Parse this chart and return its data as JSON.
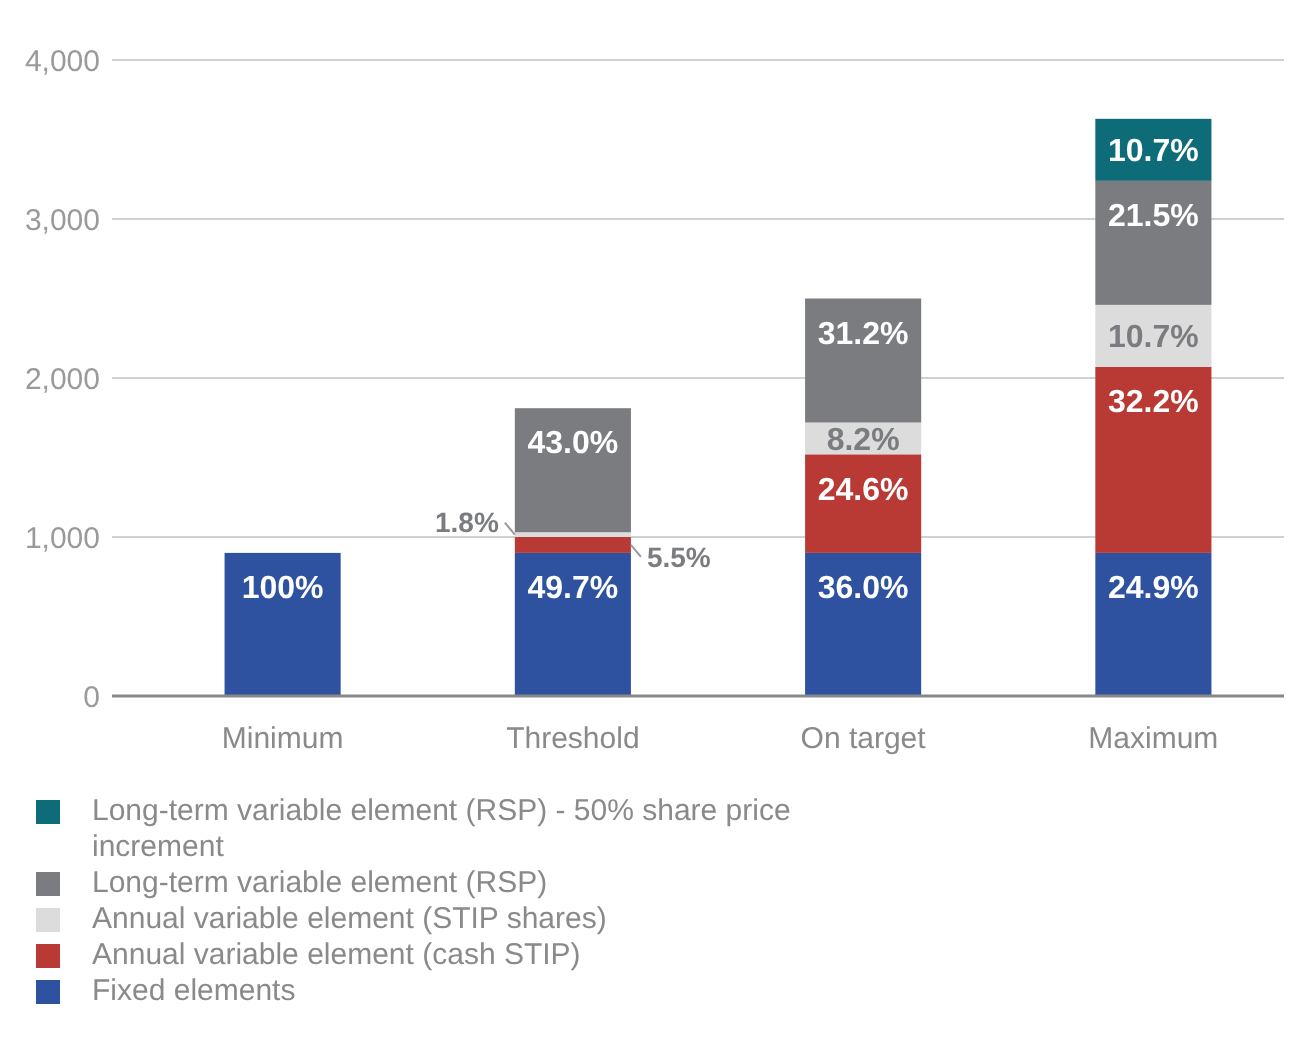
{
  "chart_data": {
    "type": "bar",
    "stacked": true,
    "categories": [
      "Minimum",
      "Threshold",
      "On target",
      "Maximum"
    ],
    "series": [
      {
        "name": "Fixed elements",
        "color": "#2f52a0",
        "values": [
          900,
          900,
          900,
          900
        ]
      },
      {
        "name": "Annual variable element (cash STIP)",
        "color": "#b93a35",
        "values": [
          null,
          100,
          620,
          1170
        ]
      },
      {
        "name": "Annual variable element (STIP shares)",
        "color": "#dcdcdc",
        "values": [
          null,
          30,
          200,
          390
        ]
      },
      {
        "name": "Long-term variable element (RSP)",
        "color": "#7a7c80",
        "values": [
          null,
          780,
          780,
          780
        ]
      },
      {
        "name": "Long-term variable element (RSP) - 50% share price increment",
        "color": "#0e6b78",
        "values": [
          null,
          null,
          null,
          390
        ]
      }
    ],
    "annotations": [
      {
        "text": "100%",
        "x": "Minimum",
        "y": 900
      },
      {
        "text": "49.7%",
        "x": "Threshold",
        "y": 900
      },
      {
        "text": "5.5%",
        "x": "Threshold",
        "y": 1000
      },
      {
        "text": "1.8%",
        "x": "Threshold",
        "y": 1030
      },
      {
        "text": "43.0%",
        "x": "Threshold",
        "y": 1810
      },
      {
        "text": "36.0%",
        "x": "On target",
        "y": 900
      },
      {
        "text": "24.6%",
        "x": "On target",
        "y": 1520
      },
      {
        "text": "8.2%",
        "x": "On target",
        "y": 1720
      },
      {
        "text": "31.2%",
        "x": "On target",
        "y": 2500
      },
      {
        "text": "24.9%",
        "x": "Maximum",
        "y": 900
      },
      {
        "text": "32.2%",
        "x": "Maximum",
        "y": 2070
      },
      {
        "text": "10.7%",
        "x": "Maximum",
        "y": 2460
      },
      {
        "text": "21.5%",
        "x": "Maximum",
        "y": 3240
      },
      {
        "text": "10.7%",
        "x": "Maximum",
        "y": 3630
      }
    ],
    "ylim": [
      0,
      4000
    ],
    "yticks": [
      0,
      {
        "value": 1000,
        "label": "1,000"
      },
      {
        "value": 2000,
        "label": "2,000"
      },
      {
        "value": 3000,
        "label": "3,000"
      },
      {
        "value": 4000,
        "label": "4,000"
      }
    ],
    "grid": "y",
    "legend": "bottom"
  }
}
